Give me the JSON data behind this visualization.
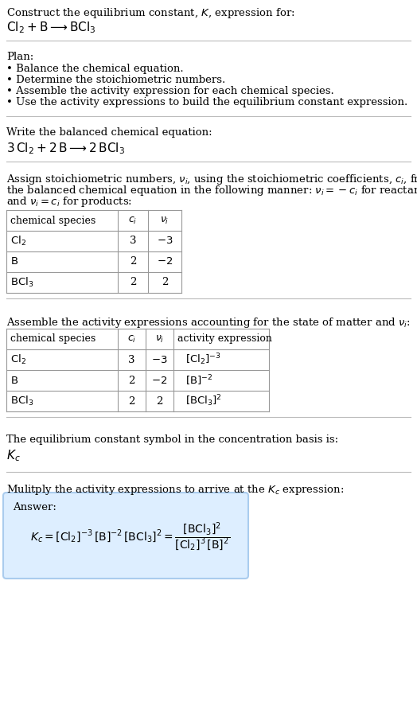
{
  "title_line1": "Construct the equilibrium constant, $K$, expression for:",
  "title_line2": "$\\mathrm{Cl_2 + B \\longrightarrow BCl_3}$",
  "plan_header": "Plan:",
  "plan_items": [
    "• Balance the chemical equation.",
    "• Determine the stoichiometric numbers.",
    "• Assemble the activity expression for each chemical species.",
    "• Use the activity expressions to build the equilibrium constant expression."
  ],
  "balanced_header": "Write the balanced chemical equation:",
  "balanced_eq": "$\\mathrm{3\\,Cl_2 + 2\\,B \\longrightarrow 2\\,BCl_3}$",
  "stoich_intro_parts": [
    "Assign stoichiometric numbers, $\\nu_i$, using the stoichiometric coefficients, $c_i$, from",
    "the balanced chemical equation in the following manner: $\\nu_i = -c_i$ for reactants",
    "and $\\nu_i = c_i$ for products:"
  ],
  "table1_headers": [
    "chemical species",
    "$c_i$",
    "$\\nu_i$"
  ],
  "table1_rows": [
    [
      "$\\mathrm{Cl_2}$",
      "3",
      "$-3$"
    ],
    [
      "$\\mathrm{B}$",
      "2",
      "$-2$"
    ],
    [
      "$\\mathrm{BCl_3}$",
      "2",
      "2"
    ]
  ],
  "assemble_intro": "Assemble the activity expressions accounting for the state of matter and $\\nu_i$:",
  "table2_headers": [
    "chemical species",
    "$c_i$",
    "$\\nu_i$",
    "activity expression"
  ],
  "table2_rows": [
    [
      "$\\mathrm{Cl_2}$",
      "3",
      "$-3$",
      "$[\\mathrm{Cl_2}]^{-3}$"
    ],
    [
      "$\\mathrm{B}$",
      "2",
      "$-2$",
      "$[\\mathrm{B}]^{-2}$"
    ],
    [
      "$\\mathrm{BCl_3}$",
      "2",
      "2",
      "$[\\mathrm{BCl_3}]^2$"
    ]
  ],
  "kc_header": "The equilibrium constant symbol in the concentration basis is:",
  "kc_symbol": "$K_c$",
  "multiply_header": "Mulitply the activity expressions to arrive at the $K_c$ expression:",
  "answer_label": "Answer:",
  "bg_color": "#ffffff",
  "text_color": "#000000",
  "answer_bg_color": "#ddeeff",
  "answer_border_color": "#aaccee",
  "font_size": 9.5,
  "fig_width": 5.24,
  "fig_height": 9.01
}
